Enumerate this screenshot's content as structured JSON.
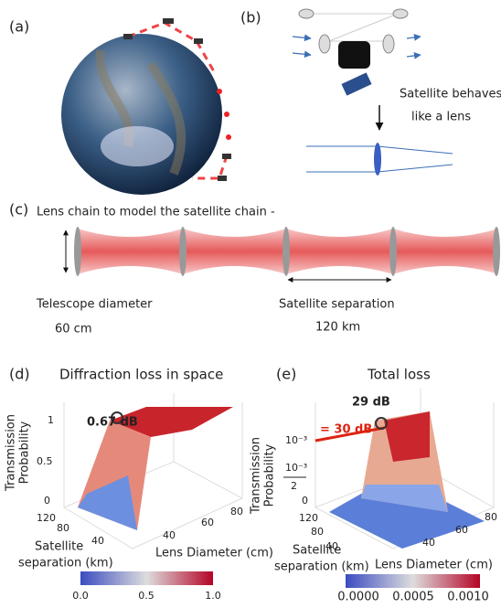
{
  "panels": {
    "a": {
      "label": "(a)"
    },
    "b": {
      "label": "(b)",
      "caption_line1": "Satellite behaves",
      "caption_line2": "like a lens"
    },
    "c": {
      "label": "(c)",
      "title": "Lens chain to model the satellite chain -",
      "left_label": "Telescope diameter",
      "left_value": "60 cm",
      "right_label": "Satellite separation",
      "right_value": "120 km"
    },
    "d": {
      "label": "(d)",
      "title": "Diffraction loss in space",
      "annotation": "0.67 dB",
      "z_label_line1": "Transmission",
      "z_label_line2": "Probability",
      "z_ticks": [
        "1",
        "0.5",
        "0"
      ],
      "y_ticks": [
        "120",
        "80",
        "40"
      ],
      "y_label_line1": "Satellite",
      "y_label_line2": "separation (km)",
      "x_ticks": [
        "40",
        "60",
        "80"
      ],
      "x_label": "Lens Diameter (cm)",
      "colorbar_ticks": [
        "0.0",
        "0.5",
        "1.0"
      ]
    },
    "e": {
      "label": "(e)",
      "title": "Total loss",
      "annotation": "29 dB",
      "threshold_label": "= 30 dB",
      "z_label_line1": "Transmission",
      "z_label_line2": "Probability",
      "z_tick_top": "10⁻³",
      "z_tick_mid_num": "10⁻³",
      "z_tick_mid_den": "2",
      "z_tick_zero": "0",
      "y_ticks": [
        "120",
        "80",
        "40"
      ],
      "y_label_line1": "Satellite",
      "y_label_line2": "separation (km)",
      "x_ticks": [
        "40",
        "60",
        "80"
      ],
      "x_label": "Lens Diameter (cm)",
      "colorbar_ticks": [
        "0.0000",
        "0.0005",
        "0.0010"
      ]
    }
  }
}
